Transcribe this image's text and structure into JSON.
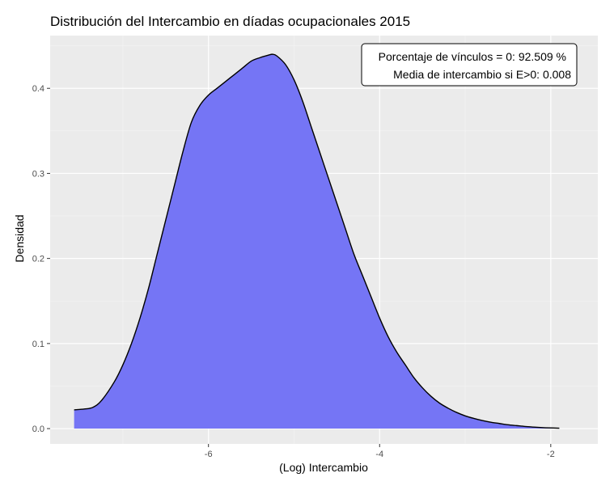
{
  "chart_data": {
    "type": "area",
    "title": "Distribución del Intercambio en díadas ocupacionales 2015",
    "xlabel": "(Log) Intercambio",
    "ylabel": "Densidad",
    "xlim": [
      -7.85,
      -1.45
    ],
    "ylim": [
      -0.018,
      0.462
    ],
    "x_ticks": [
      -6,
      -4,
      -2
    ],
    "x_tick_labels": [
      "-6",
      "-4",
      "-2"
    ],
    "y_ticks": [
      0.0,
      0.1,
      0.2,
      0.3,
      0.4
    ],
    "y_tick_labels": [
      "0.0",
      "0.1",
      "0.2",
      "0.3",
      "0.4"
    ],
    "grid": true,
    "fill_color": "#7575f5",
    "line_color": "#000000",
    "panel_color": "#ebebeb",
    "x": [
      -7.57,
      -7.45,
      -7.35,
      -7.25,
      -7.1,
      -7.0,
      -6.9,
      -6.8,
      -6.7,
      -6.6,
      -6.5,
      -6.4,
      -6.3,
      -6.2,
      -6.1,
      -6.0,
      -5.9,
      -5.8,
      -5.7,
      -5.6,
      -5.5,
      -5.4,
      -5.3,
      -5.25,
      -5.2,
      -5.1,
      -5.0,
      -4.9,
      -4.8,
      -4.7,
      -4.6,
      -4.5,
      -4.4,
      -4.3,
      -4.2,
      -4.1,
      -4.0,
      -3.9,
      -3.8,
      -3.7,
      -3.6,
      -3.5,
      -3.4,
      -3.3,
      -3.2,
      -3.1,
      -3.0,
      -2.9,
      -2.8,
      -2.7,
      -2.6,
      -2.5,
      -2.4,
      -2.3,
      -2.2,
      -2.1,
      -2.0,
      -1.9
    ],
    "y": [
      0.022,
      0.023,
      0.025,
      0.033,
      0.055,
      0.075,
      0.1,
      0.13,
      0.165,
      0.205,
      0.245,
      0.285,
      0.325,
      0.36,
      0.38,
      0.392,
      0.4,
      0.408,
      0.416,
      0.424,
      0.432,
      0.436,
      0.439,
      0.44,
      0.438,
      0.428,
      0.41,
      0.385,
      0.355,
      0.325,
      0.295,
      0.265,
      0.235,
      0.205,
      0.18,
      0.155,
      0.13,
      0.108,
      0.09,
      0.075,
      0.06,
      0.048,
      0.038,
      0.03,
      0.024,
      0.019,
      0.015,
      0.012,
      0.0095,
      0.0075,
      0.006,
      0.0045,
      0.0035,
      0.0025,
      0.0018,
      0.0012,
      0.0008,
      0.0005
    ],
    "annotation": {
      "line1": "Porcentaje de vínculos = 0: 92.509 %",
      "line2": "Media de intercambio si E>0: 0.008"
    }
  }
}
